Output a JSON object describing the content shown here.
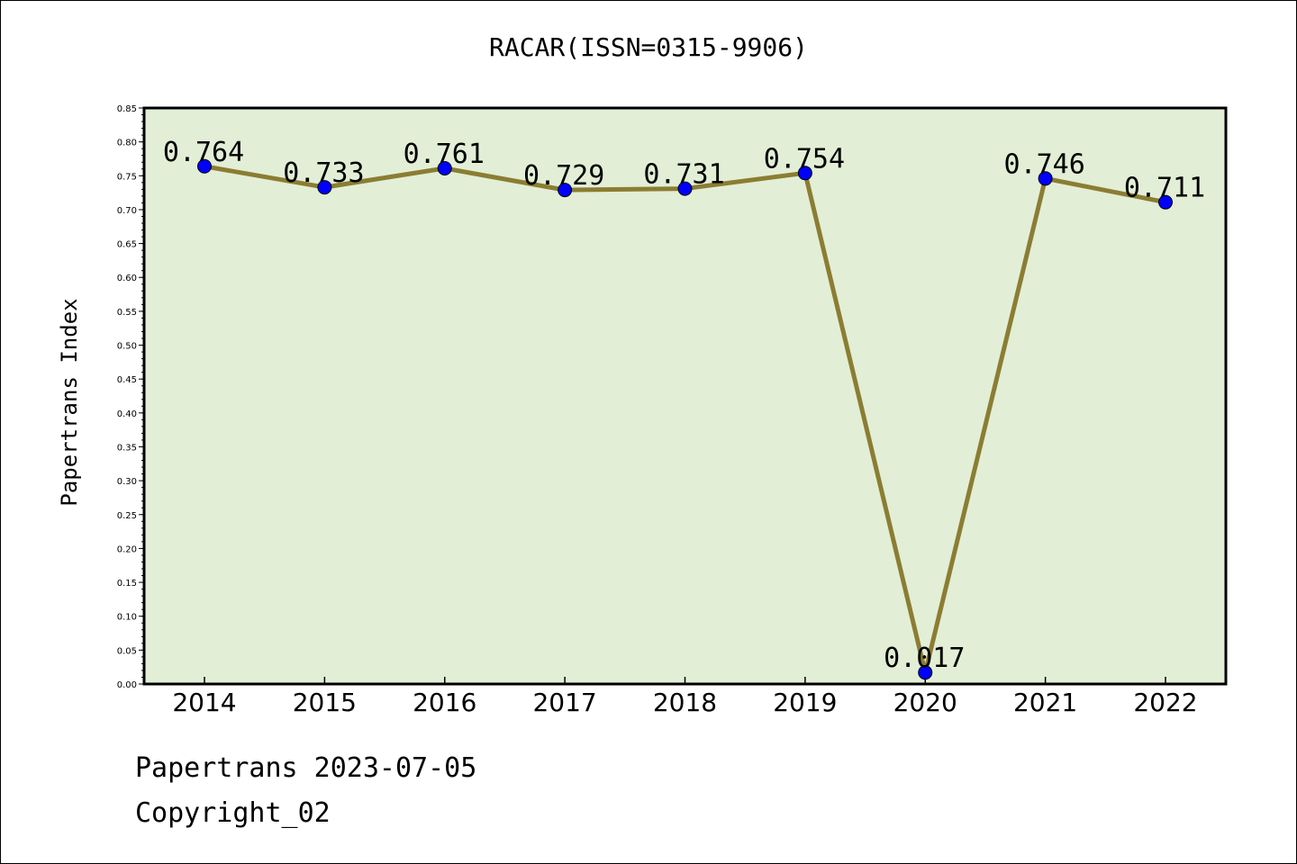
{
  "title": "RACAR(ISSN=0315-9906)",
  "chart_data": {
    "type": "line",
    "categories": [
      "2014",
      "2015",
      "2016",
      "2017",
      "2018",
      "2019",
      "2020",
      "2021",
      "2022"
    ],
    "series": [
      {
        "values": [
          0.764,
          0.733,
          0.761,
          0.729,
          0.731,
          0.754,
          0.017,
          0.746,
          0.711
        ],
        "data_labels": [
          "0.764",
          "0.733",
          "0.761",
          "0.729",
          "0.731",
          "0.754",
          "0.017",
          "0.746",
          "0.711"
        ]
      }
    ],
    "xlabel": "",
    "ylabel": "Papertrans Index",
    "ylim": [
      0,
      0.85
    ],
    "yticks": [
      "0.00",
      "0.05",
      "0.10",
      "0.15",
      "0.20",
      "0.25",
      "0.30",
      "0.35",
      "0.40",
      "0.45",
      "0.50",
      "0.55",
      "0.60",
      "0.65",
      "0.70",
      "0.75",
      "0.80",
      "0.85"
    ],
    "grid": false,
    "colors": {
      "plot_background": "#e2efd6",
      "line": "#8b7d32",
      "marker": "#0000ff"
    }
  },
  "footer": {
    "line1": "Papertrans 2023-07-05",
    "line2": "Copyright_02"
  }
}
